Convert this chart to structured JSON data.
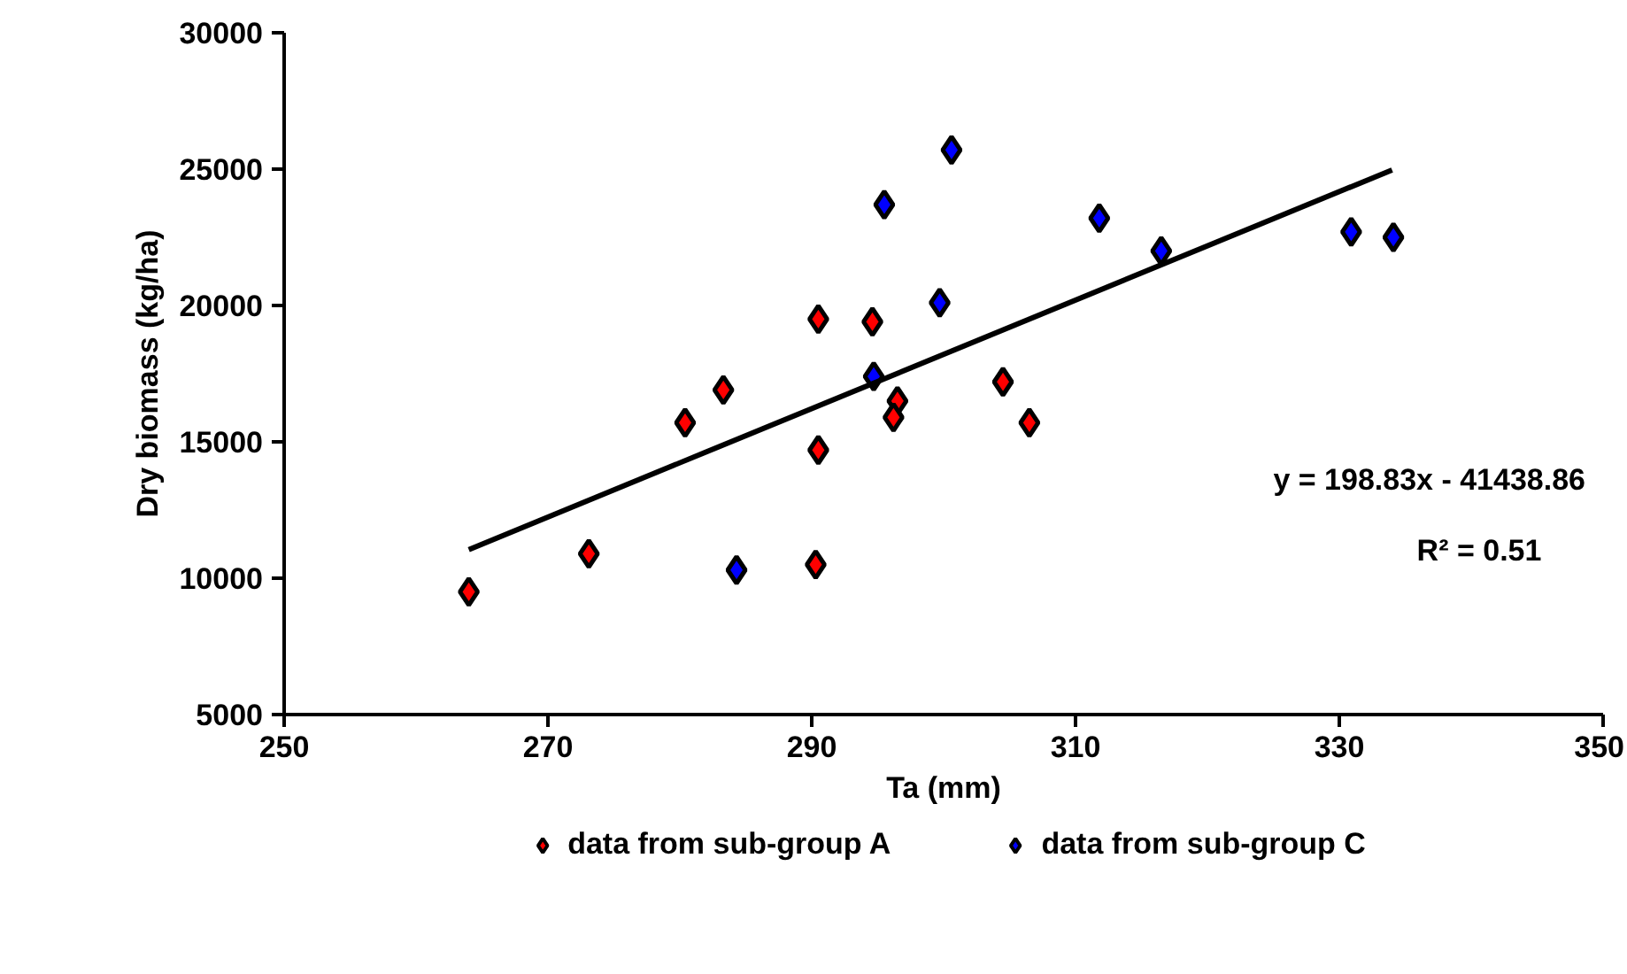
{
  "chart_data": {
    "type": "scatter",
    "xlabel": "Ta (mm)",
    "ylabel": "Dry biomass (kg/ha)",
    "marker": "diamond",
    "grid": false,
    "legend": "bottom",
    "xlim": [
      250,
      350
    ],
    "xticks": [
      250,
      270,
      290,
      310,
      330,
      350
    ],
    "ylim": [
      5000,
      30000
    ],
    "yticks": [
      5000,
      10000,
      15000,
      20000,
      25000,
      30000
    ],
    "annotations": [
      "y = 198.83x - 41438.86",
      "R² = 0.51"
    ],
    "series": [
      {
        "name": "data from sub-group A",
        "color": "#ff0000",
        "x": [
          264,
          273.1,
          280.4,
          283.3,
          290.5,
          290.5,
          290.3,
          294.6,
          296.5,
          296.2,
          304.5,
          306.5
        ],
        "values": [
          9500,
          10900,
          15700,
          16900,
          19500,
          14700,
          10500,
          19400,
          16500,
          15900,
          17200,
          15700
        ]
      },
      {
        "name": "data from sub-group C",
        "color": "#0000ff",
        "x": [
          284.3,
          294.7,
          295.5,
          299.7,
          300.6,
          311.8,
          316.5,
          330.9,
          334.1
        ],
        "values": [
          10300,
          17400,
          23700,
          20100,
          25700,
          23200,
          22000,
          22700,
          22500
        ]
      },
      {
        "type": "line",
        "marker": "none",
        "color": "#000000",
        "x": [
          264,
          334
        ],
        "values": [
          11050,
          24970
        ]
      }
    ]
  }
}
